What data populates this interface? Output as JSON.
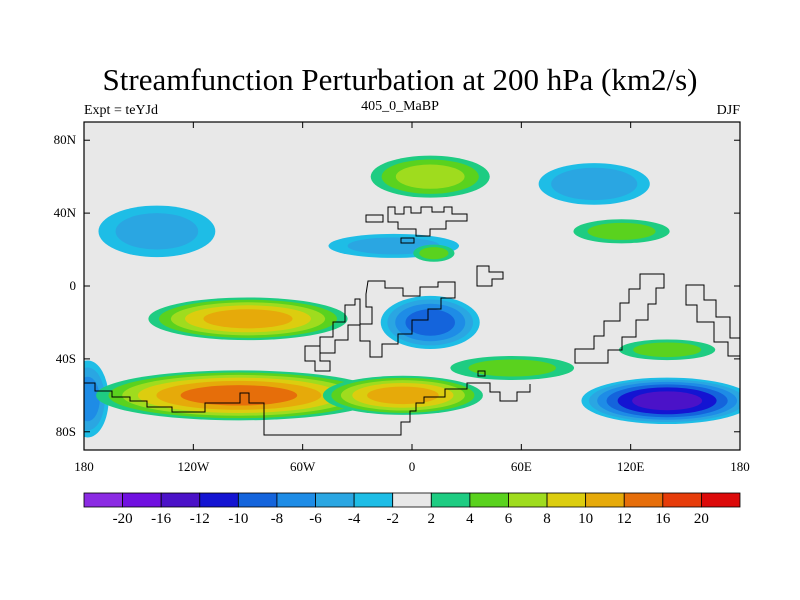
{
  "chart_data": {
    "type": "heatmap",
    "title": "Streamfunction Perturbation at 200 hPa (km2/s)",
    "left_label": "Expt = teYJd",
    "center_label": "405_0_MaBP",
    "right_label": "DJF",
    "xlim": [
      -180,
      180
    ],
    "ylim": [
      -90,
      90
    ],
    "x_ticks": [
      {
        "value": -180,
        "label": "180"
      },
      {
        "value": -120,
        "label": "120W"
      },
      {
        "value": -60,
        "label": "60W"
      },
      {
        "value": 0,
        "label": "0"
      },
      {
        "value": 60,
        "label": "60E"
      },
      {
        "value": 120,
        "label": "120E"
      },
      {
        "value": 180,
        "label": "180"
      }
    ],
    "y_ticks": [
      {
        "value": 80,
        "label": "80N"
      },
      {
        "value": 40,
        "label": "40N"
      },
      {
        "value": 0,
        "label": "0"
      },
      {
        "value": -40,
        "label": "40S"
      },
      {
        "value": -80,
        "label": "80S"
      }
    ],
    "colorbar": {
      "boundaries": [
        "-20",
        "-16",
        "-12",
        "-10",
        "-8",
        "-6",
        "-4",
        "-2",
        "2",
        "4",
        "6",
        "8",
        "10",
        "12",
        "16",
        "20"
      ],
      "colors": [
        "#8b2be3",
        "#7010e0",
        "#4b12c8",
        "#1414d2",
        "#1464dc",
        "#1e8ce6",
        "#2aa6e2",
        "#1ebde6",
        "#e8e8e8",
        "#1ecc82",
        "#5ad21e",
        "#9fdc1e",
        "#dccd0f",
        "#e6aa0a",
        "#e66e0a",
        "#e63c0a",
        "#dc0a0a"
      ]
    },
    "features": [
      {
        "name": "neg-n-pacific",
        "lon": -140,
        "lat": 30,
        "rlon": 34,
        "rlat": 15,
        "peak": -4
      },
      {
        "name": "neg-n-atlantic",
        "lon": -10,
        "lat": 22,
        "rlon": 38,
        "rlat": 7,
        "peak": -4
      },
      {
        "name": "neg-asia",
        "lon": 100,
        "lat": 56,
        "rlon": 32,
        "rlat": 12,
        "peak": -5
      },
      {
        "name": "neg-africa",
        "lon": 10,
        "lat": -20,
        "rlon": 28,
        "rlat": 15,
        "peak": -8
      },
      {
        "name": "neg-s-pacific-west",
        "lon": -178,
        "lat": -62,
        "rlon": 12,
        "rlat": 22,
        "peak": -6
      },
      {
        "name": "neg-s-indian-pacific",
        "lon": 140,
        "lat": -63,
        "rlon": 48,
        "rlat": 13,
        "peak": -12
      },
      {
        "name": "pos-arctic",
        "lon": 10,
        "lat": 60,
        "rlon": 34,
        "rlat": 12,
        "peak": 6
      },
      {
        "name": "pos-n-pacific-east",
        "lon": 115,
        "lat": 30,
        "rlon": 28,
        "rlat": 7,
        "peak": 4
      },
      {
        "name": "pos-atlantic-n",
        "lon": 12,
        "lat": 18,
        "rlon": 12,
        "rlat": 5,
        "peak": 4
      },
      {
        "name": "pos-tropical-sam",
        "lon": -90,
        "lat": -18,
        "rlon": 56,
        "rlat": 12,
        "peak": 10
      },
      {
        "name": "pos-s-pacific",
        "lon": -95,
        "lat": -60,
        "rlon": 80,
        "rlat": 14,
        "peak": 12
      },
      {
        "name": "pos-s-atlantic",
        "lon": -5,
        "lat": -60,
        "rlon": 45,
        "rlat": 11,
        "peak": 10
      },
      {
        "name": "pos-indian-s",
        "lon": 55,
        "lat": -45,
        "rlon": 36,
        "rlat": 7,
        "peak": 4
      },
      {
        "name": "pos-w-pacific-s",
        "lon": 140,
        "lat": -35,
        "rlon": 28,
        "rlat": 6,
        "peak": 4
      }
    ]
  }
}
